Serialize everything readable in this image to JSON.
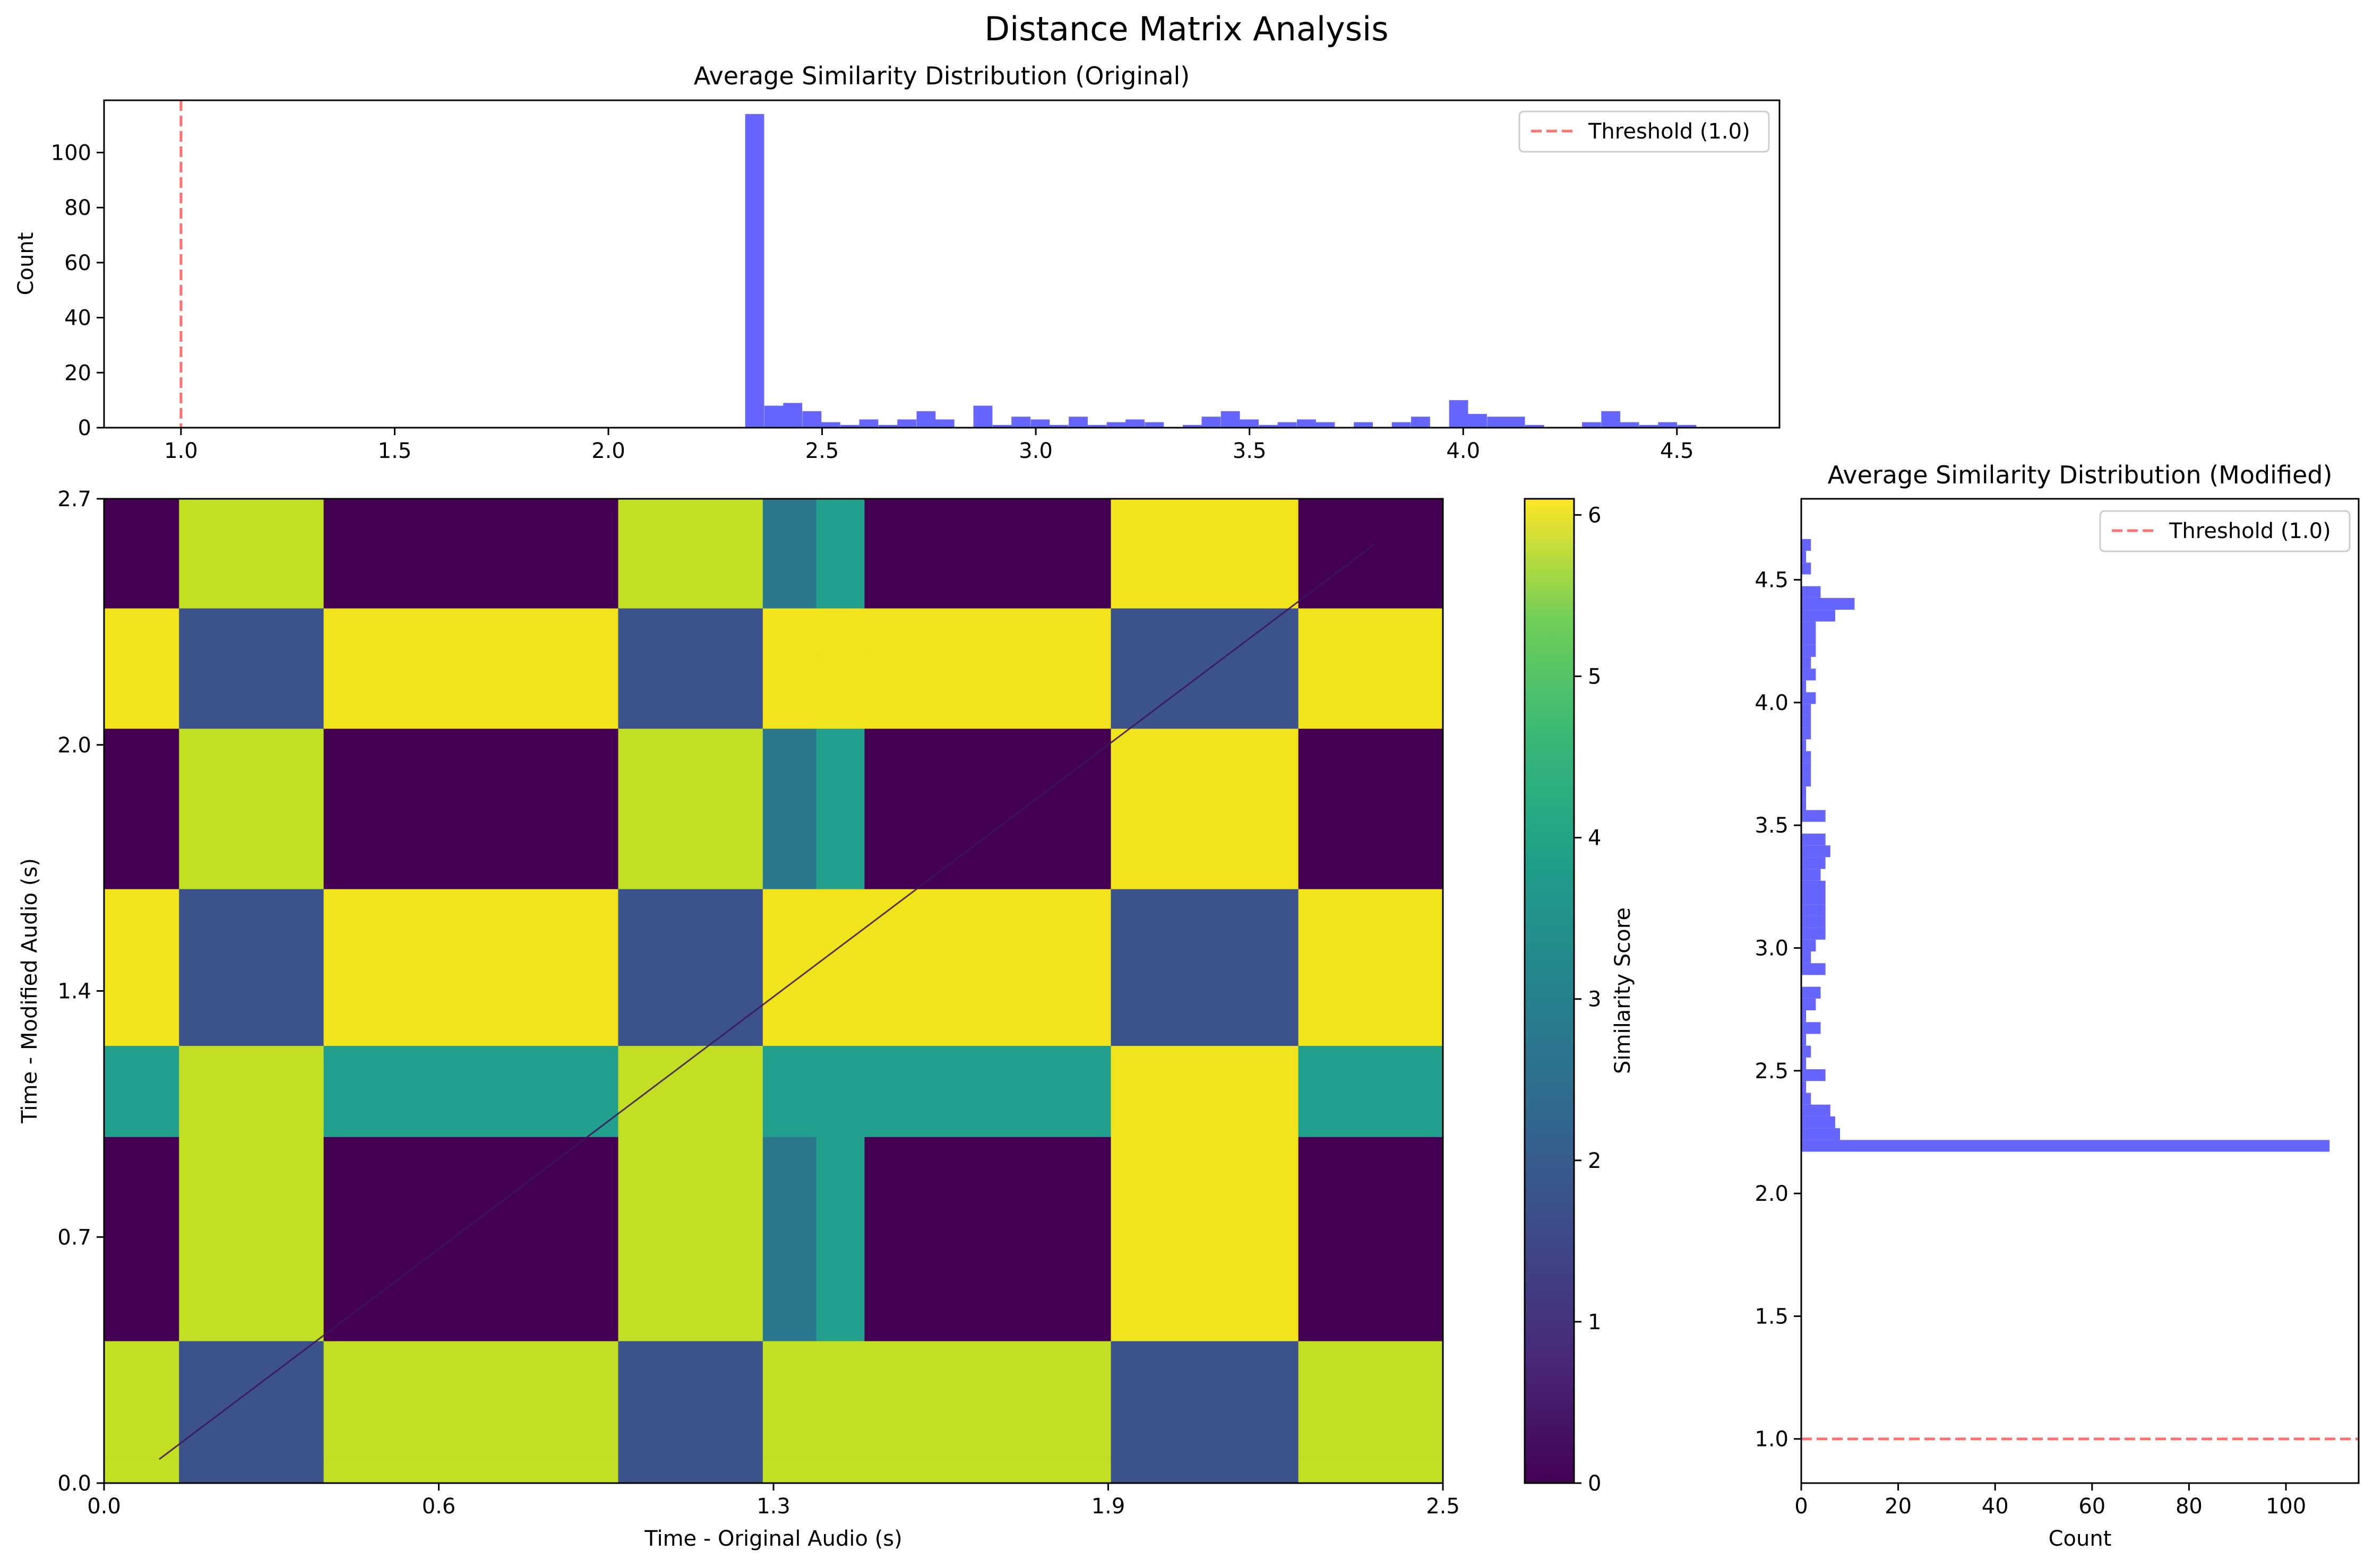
{
  "figure": {
    "title": "Distance Matrix Analysis"
  },
  "colors": {
    "bar": "#6666ff",
    "threshold": "#ff7070",
    "axis": "#000000"
  },
  "chart_data": [
    {
      "id": "hist-original",
      "type": "bar",
      "title": "Average Similarity Distribution (Original)",
      "xlabel": "",
      "ylabel": "Count",
      "xlim": [
        0.82,
        4.74
      ],
      "ylim": [
        0,
        119
      ],
      "xticks": [
        1.0,
        1.5,
        2.0,
        2.5,
        3.0,
        3.5,
        4.0,
        4.5
      ],
      "xtick_labels": [
        "1.0",
        "1.5",
        "2.0",
        "2.5",
        "3.0",
        "3.5",
        "4.0",
        "4.5"
      ],
      "yticks": [
        0,
        20,
        40,
        60,
        80,
        100
      ],
      "ytick_labels": [
        "0",
        "20",
        "40",
        "60",
        "80",
        "100"
      ],
      "bin_width": 0.0445,
      "bins": [
        {
          "x": 2.32,
          "count": 114
        },
        {
          "x": 2.365,
          "count": 8
        },
        {
          "x": 2.409,
          "count": 9
        },
        {
          "x": 2.454,
          "count": 6
        },
        {
          "x": 2.498,
          "count": 2
        },
        {
          "x": 2.543,
          "count": 1
        },
        {
          "x": 2.587,
          "count": 3
        },
        {
          "x": 2.632,
          "count": 1
        },
        {
          "x": 2.676,
          "count": 3
        },
        {
          "x": 2.721,
          "count": 6
        },
        {
          "x": 2.765,
          "count": 3
        },
        {
          "x": 2.81,
          "count": 0
        },
        {
          "x": 2.854,
          "count": 8
        },
        {
          "x": 2.899,
          "count": 1
        },
        {
          "x": 2.943,
          "count": 4
        },
        {
          "x": 2.988,
          "count": 3
        },
        {
          "x": 3.032,
          "count": 1
        },
        {
          "x": 3.077,
          "count": 4
        },
        {
          "x": 3.121,
          "count": 1
        },
        {
          "x": 3.166,
          "count": 2
        },
        {
          "x": 3.21,
          "count": 3
        },
        {
          "x": 3.255,
          "count": 2
        },
        {
          "x": 3.299,
          "count": 0
        },
        {
          "x": 3.344,
          "count": 1
        },
        {
          "x": 3.388,
          "count": 4
        },
        {
          "x": 3.433,
          "count": 6
        },
        {
          "x": 3.477,
          "count": 3
        },
        {
          "x": 3.522,
          "count": 1
        },
        {
          "x": 3.566,
          "count": 2
        },
        {
          "x": 3.611,
          "count": 3
        },
        {
          "x": 3.655,
          "count": 2
        },
        {
          "x": 3.7,
          "count": 0
        },
        {
          "x": 3.744,
          "count": 2
        },
        {
          "x": 3.789,
          "count": 0
        },
        {
          "x": 3.833,
          "count": 2
        },
        {
          "x": 3.878,
          "count": 4
        },
        {
          "x": 3.922,
          "count": 0
        },
        {
          "x": 3.967,
          "count": 10
        },
        {
          "x": 4.011,
          "count": 5
        },
        {
          "x": 4.056,
          "count": 4
        },
        {
          "x": 4.1,
          "count": 4
        },
        {
          "x": 4.145,
          "count": 1
        },
        {
          "x": 4.189,
          "count": 0
        },
        {
          "x": 4.234,
          "count": 0
        },
        {
          "x": 4.278,
          "count": 2
        },
        {
          "x": 4.323,
          "count": 6
        },
        {
          "x": 4.367,
          "count": 2
        },
        {
          "x": 4.412,
          "count": 1
        },
        {
          "x": 4.456,
          "count": 2
        },
        {
          "x": 4.501,
          "count": 1
        }
      ],
      "threshold": 1.0,
      "legend": [
        "Threshold (1.0)"
      ],
      "legend_position": "upper right"
    },
    {
      "id": "distance-matrix",
      "type": "heatmap",
      "title": "",
      "xlabel": "Time - Original Audio (s)",
      "ylabel": "Time - Modified Audio (s)",
      "xlim": [
        0,
        2.5
      ],
      "ylim": [
        0,
        2.7
      ],
      "xtick_labels": [
        "0.0",
        "0.6",
        "1.3",
        "1.9",
        "2.5"
      ],
      "ytick_labels": [
        "0.0",
        "0.7",
        "1.4",
        "2.0",
        "2.7"
      ],
      "colorbar_label": "Similarity Score",
      "colorbar_range": [
        0,
        6.1
      ],
      "colorbar_ticks": [
        0,
        1,
        2,
        3,
        4,
        5,
        6
      ],
      "colorbar_tick_labels": [
        "0",
        "1",
        "2",
        "3",
        "4",
        "5",
        "6"
      ],
      "colormap": "viridis",
      "x_segments": [
        {
          "start": 0.0,
          "end": 0.14,
          "level": 0
        },
        {
          "start": 0.14,
          "end": 0.41,
          "level": 5
        },
        {
          "start": 0.41,
          "end": 0.96,
          "level": 0
        },
        {
          "start": 0.96,
          "end": 1.23,
          "level": 5
        },
        {
          "start": 1.23,
          "end": 1.33,
          "level": 2
        },
        {
          "start": 1.33,
          "end": 1.42,
          "level": 3
        },
        {
          "start": 1.42,
          "end": 1.88,
          "level": 0
        },
        {
          "start": 1.88,
          "end": 2.23,
          "level": 6
        },
        {
          "start": 2.23,
          "end": 2.5,
          "level": 0
        }
      ],
      "y_segments": [
        {
          "start": 0.0,
          "end": 0.07,
          "level": 5
        },
        {
          "start": 0.07,
          "end": 0.39,
          "level": 5
        },
        {
          "start": 0.39,
          "end": 0.95,
          "level": 0
        },
        {
          "start": 0.95,
          "end": 1.2,
          "level": 3
        },
        {
          "start": 1.2,
          "end": 1.63,
          "level": 6
        },
        {
          "start": 1.63,
          "end": 2.07,
          "level": 0
        },
        {
          "start": 2.07,
          "end": 2.27,
          "level": 6
        },
        {
          "start": 2.27,
          "end": 2.4,
          "level": 6
        },
        {
          "start": 2.4,
          "end": 2.7,
          "level": 0
        }
      ]
    },
    {
      "id": "hist-modified",
      "type": "bar",
      "orientation": "horizontal",
      "title": "Average Similarity Distribution (Modified)",
      "xlabel": "Count",
      "ylabel": "",
      "xlim": [
        0,
        115
      ],
      "ylim": [
        0.82,
        4.83
      ],
      "xticks": [
        0,
        20,
        40,
        60,
        80,
        100
      ],
      "xtick_labels": [
        "0",
        "20",
        "40",
        "60",
        "80",
        "100"
      ],
      "yticks": [
        1.0,
        1.5,
        2.0,
        2.5,
        3.0,
        3.5,
        4.0,
        4.5
      ],
      "ytick_labels": [
        "1.0",
        "1.5",
        "2.0",
        "2.5",
        "3.0",
        "3.5",
        "4.0",
        "4.5"
      ],
      "bin_width": 0.048,
      "bins": [
        {
          "y": 2.17,
          "count": 109
        },
        {
          "y": 2.218,
          "count": 8
        },
        {
          "y": 2.266,
          "count": 7
        },
        {
          "y": 2.314,
          "count": 6
        },
        {
          "y": 2.362,
          "count": 2
        },
        {
          "y": 2.41,
          "count": 1
        },
        {
          "y": 2.458,
          "count": 5
        },
        {
          "y": 2.506,
          "count": 1
        },
        {
          "y": 2.554,
          "count": 2
        },
        {
          "y": 2.602,
          "count": 1
        },
        {
          "y": 2.65,
          "count": 4
        },
        {
          "y": 2.698,
          "count": 1
        },
        {
          "y": 2.746,
          "count": 3
        },
        {
          "y": 2.794,
          "count": 4
        },
        {
          "y": 2.842,
          "count": 0
        },
        {
          "y": 2.89,
          "count": 5
        },
        {
          "y": 2.938,
          "count": 2
        },
        {
          "y": 2.986,
          "count": 3
        },
        {
          "y": 3.034,
          "count": 5
        },
        {
          "y": 3.082,
          "count": 5
        },
        {
          "y": 3.13,
          "count": 5
        },
        {
          "y": 3.178,
          "count": 5
        },
        {
          "y": 3.226,
          "count": 5
        },
        {
          "y": 3.274,
          "count": 4
        },
        {
          "y": 3.322,
          "count": 5
        },
        {
          "y": 3.37,
          "count": 6
        },
        {
          "y": 3.418,
          "count": 5
        },
        {
          "y": 3.466,
          "count": 0
        },
        {
          "y": 3.514,
          "count": 5
        },
        {
          "y": 3.562,
          "count": 1
        },
        {
          "y": 3.61,
          "count": 1
        },
        {
          "y": 3.658,
          "count": 2
        },
        {
          "y": 3.706,
          "count": 2
        },
        {
          "y": 3.754,
          "count": 2
        },
        {
          "y": 3.802,
          "count": 1
        },
        {
          "y": 3.85,
          "count": 2
        },
        {
          "y": 3.898,
          "count": 2
        },
        {
          "y": 3.946,
          "count": 2
        },
        {
          "y": 3.994,
          "count": 3
        },
        {
          "y": 4.042,
          "count": 1
        },
        {
          "y": 4.09,
          "count": 3
        },
        {
          "y": 4.138,
          "count": 2
        },
        {
          "y": 4.186,
          "count": 3
        },
        {
          "y": 4.234,
          "count": 3
        },
        {
          "y": 4.282,
          "count": 3
        },
        {
          "y": 4.33,
          "count": 7
        },
        {
          "y": 4.378,
          "count": 11
        },
        {
          "y": 4.426,
          "count": 4
        },
        {
          "y": 4.474,
          "count": 0
        },
        {
          "y": 4.522,
          "count": 2
        },
        {
          "y": 4.57,
          "count": 1
        },
        {
          "y": 4.618,
          "count": 2
        }
      ],
      "threshold": 1.0,
      "legend": [
        "Threshold (1.0)"
      ],
      "legend_position": "upper right"
    }
  ]
}
